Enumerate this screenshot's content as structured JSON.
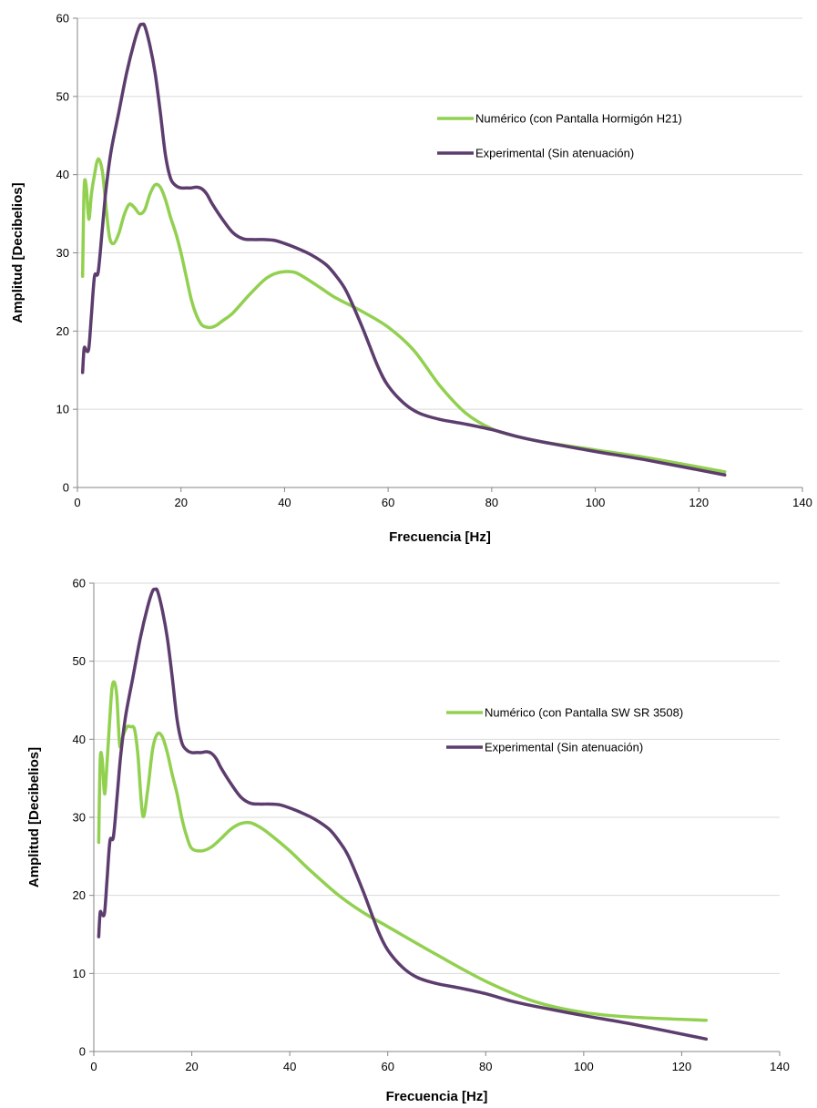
{
  "chart_data": [
    {
      "type": "line",
      "xlabel": "Frecuencia [Hz]",
      "ylabel": "Amplitud [Decibelios]",
      "xlim": [
        0,
        140
      ],
      "ylim": [
        0,
        60
      ],
      "xticks": [
        0,
        20,
        40,
        60,
        80,
        100,
        120,
        140
      ],
      "yticks": [
        0,
        10,
        20,
        30,
        40,
        50,
        60
      ],
      "grid": "horizontal",
      "legend": "right",
      "series": [
        {
          "name": "Numérico (con Pantalla Hormigón H21)",
          "color": "#92D050",
          "x": [
            1,
            1.3,
            1.7,
            2.2,
            2.7,
            3.3,
            4,
            4.8,
            5.5,
            6.2,
            7,
            8,
            9,
            10,
            11,
            12,
            13,
            14,
            15,
            16,
            17,
            18,
            19,
            20,
            21,
            22,
            23,
            24,
            25,
            26,
            27,
            28,
            30,
            33,
            36,
            38,
            40,
            42,
            44,
            47,
            50,
            55,
            60,
            65,
            70,
            75,
            80,
            85,
            90,
            100,
            110,
            125
          ],
          "y": [
            27,
            38.3,
            38.5,
            34.3,
            37.5,
            40,
            42,
            40.5,
            36,
            32,
            31.2,
            32.5,
            34.8,
            36.2,
            35.8,
            35,
            35.5,
            37.5,
            38.7,
            38.4,
            36.8,
            34.5,
            32.5,
            30,
            27,
            24,
            22,
            20.8,
            20.5,
            20.5,
            20.8,
            21.3,
            22.3,
            24.5,
            26.5,
            27.3,
            27.6,
            27.5,
            26.8,
            25.5,
            24.2,
            22.5,
            20.5,
            17.5,
            13,
            9.5,
            7.5,
            6.5,
            5.8,
            4.8,
            3.8,
            2
          ]
        },
        {
          "name": "Experimental (Sin atenuación)",
          "color": "#5C3D6E",
          "x": [
            1,
            1.3,
            1.7,
            2.2,
            2.7,
            3.3,
            4,
            4.8,
            5.5,
            6.5,
            8,
            9.5,
            11,
            12,
            12.5,
            13,
            14,
            15,
            16,
            17,
            18,
            19,
            20,
            21,
            22,
            23,
            24,
            25,
            26,
            28,
            30,
            32,
            34,
            36,
            38,
            40,
            42,
            45,
            48,
            50,
            52,
            55,
            58,
            60,
            63,
            66,
            70,
            75,
            80,
            85,
            90,
            100,
            110,
            125
          ],
          "y": [
            14.7,
            17.8,
            17.5,
            17.8,
            22,
            27,
            27.5,
            33,
            38,
            43,
            48,
            53,
            57,
            59,
            59.2,
            59,
            56.5,
            53,
            48,
            42.5,
            39.5,
            38.6,
            38.3,
            38.3,
            38.3,
            38.4,
            38.2,
            37.5,
            36.3,
            34.3,
            32.6,
            31.8,
            31.7,
            31.7,
            31.6,
            31.2,
            30.7,
            29.8,
            28.5,
            27,
            25,
            20.5,
            15.5,
            13,
            10.8,
            9.5,
            8.7,
            8.1,
            7.4,
            6.5,
            5.8,
            4.6,
            3.5,
            1.6
          ]
        }
      ]
    },
    {
      "type": "line",
      "xlabel": "Frecuencia [Hz]",
      "ylabel": "Amplitud [Decibelios]",
      "xlim": [
        0,
        140
      ],
      "ylim": [
        0,
        60
      ],
      "xticks": [
        0,
        20,
        40,
        60,
        80,
        100,
        120,
        140
      ],
      "yticks": [
        0,
        10,
        20,
        30,
        40,
        50,
        60
      ],
      "grid": "horizontal",
      "legend": "right",
      "series": [
        {
          "name": "Numérico (con Pantalla SW SR 3508)",
          "color": "#92D050",
          "x": [
            1,
            1.3,
            1.7,
            2.2,
            2.7,
            3.2,
            3.7,
            4.2,
            4.7,
            5.3,
            6,
            6.8,
            7.5,
            8.3,
            9,
            10,
            11,
            12,
            13,
            14,
            15,
            16,
            17,
            18,
            19,
            20,
            22,
            24,
            26,
            28,
            30,
            32,
            34,
            36,
            40,
            44,
            50,
            55,
            60,
            70,
            80,
            90,
            100,
            110,
            125
          ],
          "y": [
            26.8,
            37.3,
            37.5,
            33,
            37,
            42,
            46.5,
            47.3,
            45.5,
            39.2,
            40.5,
            41.6,
            41.6,
            41.3,
            38,
            30.2,
            33.5,
            38.7,
            40.7,
            40.3,
            38.3,
            35.5,
            33,
            29.8,
            27.5,
            26,
            25.7,
            26.2,
            27.3,
            28.5,
            29.2,
            29.3,
            28.7,
            27.8,
            25.7,
            23.3,
            20,
            17.8,
            16,
            12.4,
            9,
            6.4,
            5,
            4.4,
            4
          ]
        },
        {
          "name": "Experimental (Sin atenuación)",
          "color": "#5C3D6E",
          "x": [
            1,
            1.3,
            1.7,
            2.2,
            2.7,
            3.3,
            4,
            4.8,
            5.5,
            6.5,
            8,
            9.5,
            11,
            12,
            12.5,
            13,
            14,
            15,
            16,
            17,
            18,
            19,
            20,
            21,
            22,
            23,
            24,
            25,
            26,
            28,
            30,
            32,
            34,
            36,
            38,
            40,
            42,
            45,
            48,
            50,
            52,
            55,
            58,
            60,
            63,
            66,
            70,
            75,
            80,
            85,
            90,
            100,
            110,
            125
          ],
          "y": [
            14.7,
            17.8,
            17.5,
            17.8,
            22,
            27,
            27.5,
            33,
            38,
            43,
            48,
            53,
            57,
            59,
            59.2,
            59,
            56.5,
            53,
            48,
            42.5,
            39.5,
            38.6,
            38.3,
            38.3,
            38.3,
            38.4,
            38.2,
            37.5,
            36.3,
            34.3,
            32.6,
            31.8,
            31.7,
            31.7,
            31.6,
            31.2,
            30.7,
            29.8,
            28.5,
            27,
            25,
            20.5,
            15.5,
            13,
            10.8,
            9.5,
            8.7,
            8.1,
            7.4,
            6.5,
            5.8,
            4.6,
            3.5,
            1.6
          ]
        }
      ]
    }
  ]
}
